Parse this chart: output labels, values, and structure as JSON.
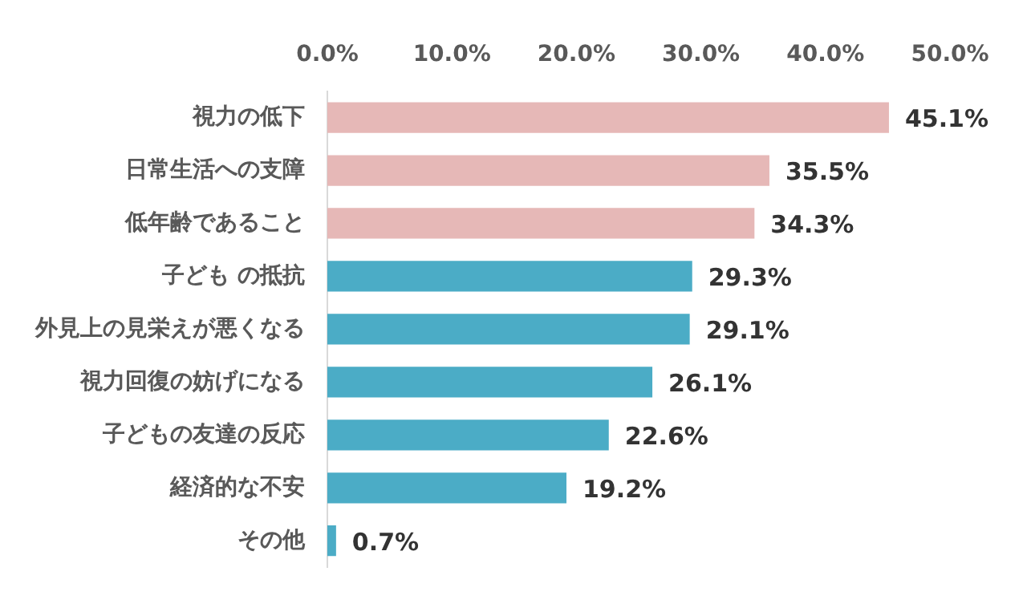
{
  "chart_data": {
    "type": "bar",
    "orientation": "horizontal",
    "categories": [
      "視力の低下",
      "日常生活への支障",
      "低年齢であること",
      "子ども の抵抗",
      "外見上の見栄えが悪くなる",
      "視力回復の妨げになる",
      "子どもの友達の反応",
      "経済的な不安",
      "その他"
    ],
    "values": [
      45.1,
      35.5,
      34.3,
      29.3,
      29.1,
      26.1,
      22.6,
      19.2,
      0.7
    ],
    "colors": [
      "#e6b8b7",
      "#e6b8b7",
      "#e6b8b7",
      "#4bacc6",
      "#4bacc6",
      "#4bacc6",
      "#4bacc6",
      "#4bacc6",
      "#4bacc6"
    ],
    "value_labels": [
      "45.1%",
      "35.5%",
      "34.3%",
      "29.3%",
      "29.1%",
      "26.1%",
      "22.6%",
      "19.2%",
      "0.7%"
    ],
    "xlim": [
      0,
      50
    ],
    "xticks": [
      {
        "value": 0,
        "label": "0.0%"
      },
      {
        "value": 10,
        "label": "10.0%"
      },
      {
        "value": 20,
        "label": "20.0%"
      },
      {
        "value": 30,
        "label": "30.0%"
      },
      {
        "value": 40,
        "label": "40.0%"
      },
      {
        "value": 50,
        "label": "50.0%"
      }
    ],
    "grid": false,
    "legend": false
  }
}
